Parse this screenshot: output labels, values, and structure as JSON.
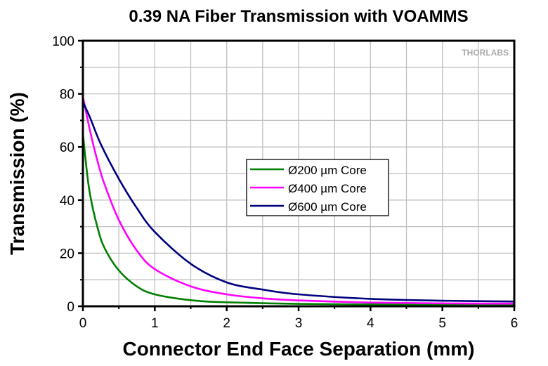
{
  "chart_data": {
    "type": "line",
    "title": "0.39 NA Fiber Transmission with VOAMMS",
    "xlabel": "Connector End Face Separation (mm)",
    "ylabel": "Transmission (%)",
    "xlim": [
      0,
      6
    ],
    "ylim": [
      0,
      100
    ],
    "xticks": [
      "0",
      "1",
      "2",
      "3",
      "4",
      "5",
      "6"
    ],
    "yticks": [
      "0",
      "20",
      "40",
      "60",
      "80",
      "100"
    ],
    "grid": true,
    "legend_placement": "center",
    "watermark": "THORLABS",
    "series": [
      {
        "name": "Ø200 µm Core",
        "color": "#008000",
        "x": [
          0,
          0.05,
          0.1,
          0.2,
          0.3,
          0.5,
          0.75,
          1,
          1.5,
          2,
          3,
          4,
          5,
          6
        ],
        "y": [
          65,
          52,
          42,
          30,
          22,
          13.5,
          7.5,
          4.5,
          2.3,
          1.5,
          0.9,
          0.7,
          0.6,
          0.5
        ]
      },
      {
        "name": "Ø400 µm Core",
        "color": "#ff00ff",
        "x": [
          0,
          0.1,
          0.2,
          0.3,
          0.5,
          0.75,
          1,
          1.5,
          2,
          2.5,
          3,
          4,
          5,
          6
        ],
        "y": [
          79,
          66,
          55,
          46,
          32.5,
          21,
          14,
          7.5,
          4.5,
          3,
          2.2,
          1.4,
          1.1,
          1.0
        ]
      },
      {
        "name": "Ø600 µm Core",
        "color": "#000080",
        "x": [
          0,
          0.1,
          0.25,
          0.5,
          0.75,
          1,
          1.5,
          2,
          2.5,
          3,
          4,
          5,
          6
        ],
        "y": [
          77,
          71,
          61,
          48,
          37,
          28,
          16,
          9,
          6.3,
          4.5,
          2.8,
          2.1,
          1.8
        ]
      }
    ]
  }
}
